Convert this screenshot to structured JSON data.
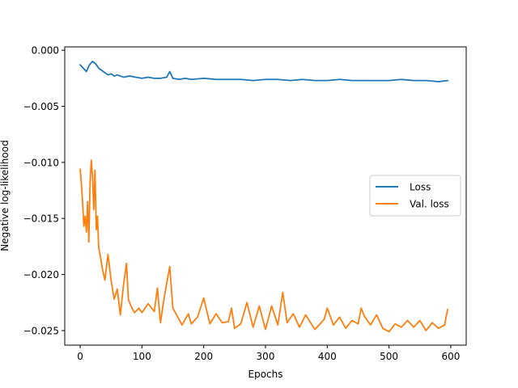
{
  "chart_data": {
    "type": "line",
    "title": "",
    "xlabel": "Epochs",
    "ylabel": "Negative log-likelihood",
    "xlim": [
      -25,
      625
    ],
    "ylim": [
      -0.0263,
      0.0003
    ],
    "xticks": [
      0,
      100,
      200,
      300,
      400,
      500,
      600
    ],
    "xtick_labels": [
      "0",
      "100",
      "200",
      "300",
      "400",
      "500",
      "600"
    ],
    "yticks": [
      0.0,
      -0.005,
      -0.01,
      -0.015,
      -0.02,
      -0.025
    ],
    "ytick_labels": [
      "0.000",
      "−0.005",
      "−0.010",
      "−0.015",
      "−0.020",
      "−0.025"
    ],
    "grid": false,
    "legend_position": "center-right",
    "series": [
      {
        "name": "Loss",
        "color": "#1f77b4",
        "x": [
          0,
          5,
          10,
          15,
          20,
          25,
          30,
          35,
          40,
          45,
          50,
          55,
          60,
          70,
          80,
          90,
          100,
          110,
          120,
          130,
          140,
          145,
          150,
          160,
          170,
          180,
          200,
          220,
          240,
          260,
          280,
          300,
          320,
          340,
          360,
          380,
          400,
          420,
          440,
          460,
          480,
          500,
          520,
          540,
          560,
          580,
          595
        ],
        "y": [
          -0.0013,
          -0.0016,
          -0.0019,
          -0.0013,
          -0.001,
          -0.0012,
          -0.0016,
          -0.0018,
          -0.002,
          -0.0022,
          -0.0021,
          -0.0023,
          -0.0022,
          -0.0024,
          -0.0023,
          -0.0024,
          -0.0025,
          -0.0024,
          -0.0025,
          -0.0025,
          -0.0024,
          -0.0019,
          -0.0025,
          -0.0026,
          -0.0025,
          -0.0026,
          -0.0025,
          -0.0026,
          -0.0026,
          -0.0026,
          -0.0027,
          -0.0026,
          -0.0026,
          -0.0027,
          -0.0026,
          -0.0027,
          -0.0027,
          -0.0026,
          -0.0027,
          -0.0027,
          -0.0027,
          -0.0027,
          -0.0026,
          -0.0027,
          -0.0027,
          -0.0028,
          -0.0027
        ]
      },
      {
        "name": "Val. loss",
        "color": "#ff7f0e",
        "x": [
          0,
          3,
          6,
          8,
          10,
          12,
          14,
          16,
          18,
          20,
          22,
          24,
          26,
          28,
          30,
          33,
          36,
          40,
          45,
          50,
          55,
          60,
          65,
          70,
          75,
          78,
          82,
          88,
          95,
          100,
          110,
          120,
          125,
          130,
          135,
          140,
          145,
          150,
          160,
          165,
          175,
          180,
          190,
          200,
          210,
          220,
          230,
          240,
          245,
          250,
          260,
          270,
          280,
          290,
          300,
          310,
          320,
          328,
          335,
          345,
          355,
          365,
          380,
          395,
          400,
          410,
          420,
          430,
          440,
          450,
          455,
          460,
          470,
          480,
          490,
          500,
          510,
          520,
          530,
          540,
          550,
          560,
          570,
          580,
          590,
          595
        ],
        "y": [
          -0.0106,
          -0.0127,
          -0.0157,
          -0.0148,
          -0.0162,
          -0.0135,
          -0.0171,
          -0.0118,
          -0.0098,
          -0.0113,
          -0.0142,
          -0.0107,
          -0.016,
          -0.0148,
          -0.0176,
          -0.0185,
          -0.0195,
          -0.0205,
          -0.0182,
          -0.0205,
          -0.0222,
          -0.0213,
          -0.0236,
          -0.021,
          -0.019,
          -0.0222,
          -0.0228,
          -0.0234,
          -0.023,
          -0.0234,
          -0.0226,
          -0.0233,
          -0.0212,
          -0.0243,
          -0.0224,
          -0.0208,
          -0.0193,
          -0.023,
          -0.024,
          -0.0245,
          -0.0235,
          -0.0244,
          -0.0238,
          -0.0221,
          -0.0244,
          -0.0235,
          -0.0243,
          -0.0242,
          -0.023,
          -0.0248,
          -0.0244,
          -0.0225,
          -0.0247,
          -0.0228,
          -0.0249,
          -0.0228,
          -0.0245,
          -0.0216,
          -0.0243,
          -0.0235,
          -0.0247,
          -0.0236,
          -0.0249,
          -0.024,
          -0.023,
          -0.0245,
          -0.0238,
          -0.0248,
          -0.0241,
          -0.0244,
          -0.023,
          -0.0237,
          -0.0245,
          -0.0236,
          -0.0248,
          -0.0251,
          -0.0244,
          -0.0247,
          -0.0241,
          -0.0247,
          -0.0241,
          -0.025,
          -0.0243,
          -0.0248,
          -0.0245,
          -0.0231
        ]
      }
    ]
  }
}
